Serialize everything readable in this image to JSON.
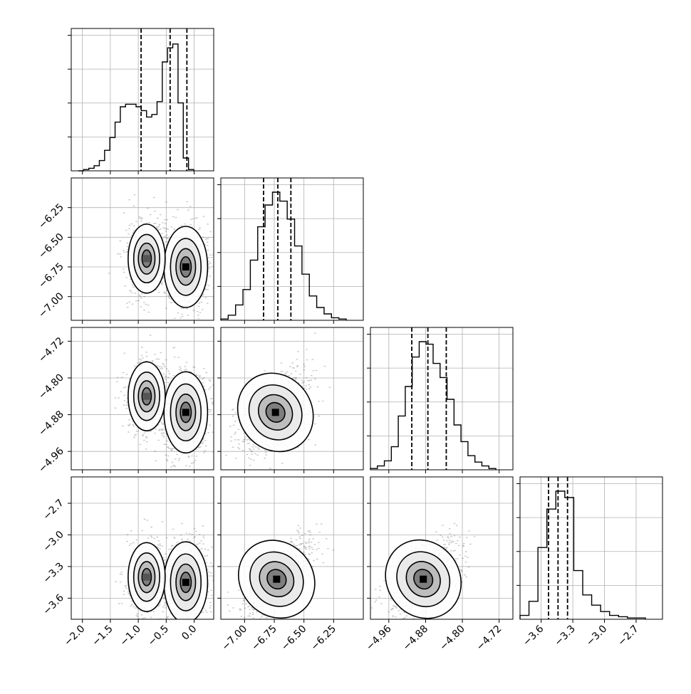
{
  "chart_data": {
    "type": "corner",
    "parameters": [
      {
        "range": [
          -2.2,
          0.35
        ],
        "ticks": [
          -2.0,
          -1.5,
          -1.0,
          -0.5,
          0.0
        ],
        "tick_labels": [
          "−2.0",
          "−1.5",
          "−1.0",
          "−0.5",
          "0.0"
        ],
        "quantiles": [
          -0.95,
          -0.43,
          -0.13
        ]
      },
      {
        "range": [
          -7.2,
          -6.0
        ],
        "ticks": [
          -7.0,
          -6.75,
          -6.5,
          -6.25
        ],
        "tick_labels": [
          "−7.00",
          "−6.75",
          "−6.50",
          "−6.25"
        ],
        "quantiles": [
          -6.84,
          -6.72,
          -6.61
        ]
      },
      {
        "range": [
          -5.0,
          -4.69
        ],
        "ticks": [
          -4.96,
          -4.88,
          -4.8,
          -4.72
        ],
        "tick_labels": [
          "−4.96",
          "−4.88",
          "−4.80",
          "−4.72"
        ],
        "quantiles": [
          -4.91,
          -4.875,
          -4.835
        ]
      },
      {
        "range": [
          -3.8,
          -2.45
        ],
        "ticks": [
          -3.6,
          -3.3,
          -3.0,
          -2.7
        ],
        "tick_labels": [
          "−3.6",
          "−3.3",
          "−3.0",
          "−2.7"
        ],
        "quantiles": [
          -3.53,
          -3.44,
          -3.35
        ]
      }
    ],
    "histograms": [
      [
        0,
        0.01,
        0.02,
        0.04,
        0.08,
        0.16,
        0.26,
        0.38,
        0.5,
        0.52,
        0.52,
        0.5,
        0.47,
        0.42,
        0.44,
        0.54,
        0.85,
        0.96,
        0.99,
        0.53,
        0.1,
        0.01
      ],
      [
        0.01,
        0.04,
        0.12,
        0.24,
        0.47,
        0.73,
        0.9,
        1.0,
        0.93,
        0.79,
        0.58,
        0.36,
        0.19,
        0.1,
        0.05,
        0.02,
        0.01
      ],
      [
        0.01,
        0.03,
        0.07,
        0.18,
        0.42,
        0.65,
        0.88,
        1.0,
        0.98,
        0.83,
        0.72,
        0.55,
        0.35,
        0.22,
        0.11,
        0.06,
        0.03,
        0.01
      ],
      [
        0.03,
        0.14,
        0.56,
        0.86,
        1.0,
        0.95,
        0.38,
        0.19,
        0.11,
        0.06,
        0.03,
        0.02,
        0.01,
        0.01
      ]
    ],
    "scatter_panels": [
      {
        "x": 0,
        "y": 1,
        "peaks": [
          [
            -0.15,
            -6.75,
            1.0
          ],
          [
            -0.85,
            -6.68,
            0.55
          ]
        ]
      },
      {
        "x": 0,
        "y": 2,
        "peaks": [
          [
            -0.15,
            -4.875,
            1.0
          ],
          [
            -0.85,
            -4.84,
            0.55
          ]
        ]
      },
      {
        "x": 1,
        "y": 2,
        "peaks": [
          [
            -6.74,
            -4.875,
            1.0
          ]
        ]
      },
      {
        "x": 0,
        "y": 3,
        "peaks": [
          [
            -0.15,
            -3.45,
            1.0
          ],
          [
            -0.85,
            -3.4,
            0.55
          ]
        ]
      },
      {
        "x": 1,
        "y": 3,
        "peaks": [
          [
            -6.73,
            -3.42,
            1.0
          ]
        ]
      },
      {
        "x": 2,
        "y": 3,
        "peaks": [
          [
            -4.885,
            -3.42,
            1.0
          ]
        ]
      }
    ],
    "grid": true,
    "title": "",
    "xlabel": "",
    "ylabel": ""
  }
}
